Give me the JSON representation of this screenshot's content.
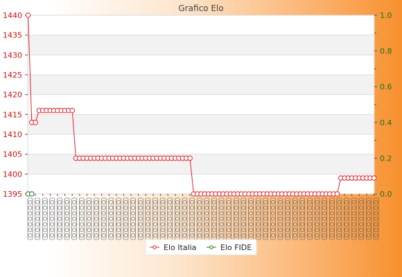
{
  "chart_data": {
    "type": "line",
    "title": "Grafico Elo",
    "y_left": {
      "min": 1395,
      "max": 1440,
      "ticks": [
        1395,
        1400,
        1405,
        1410,
        1415,
        1420,
        1425,
        1430,
        1435,
        1440
      ]
    },
    "y_right": {
      "min": 0,
      "max": 1,
      "ticks": [
        "0.0",
        "0.2",
        "0.4",
        "0.6",
        "0.8",
        "1.0"
      ]
    },
    "grid": true,
    "legend_position": "bottom-center",
    "x_count": 95,
    "series": [
      {
        "name": "Elo Italia",
        "color": "#e0202a",
        "axis": "left",
        "segments": [
          {
            "from": 0,
            "to": 0,
            "value": 1440
          },
          {
            "from": 1,
            "to": 2,
            "value": 1413
          },
          {
            "from": 3,
            "to": 12,
            "value": 1416
          },
          {
            "from": 13,
            "to": 44,
            "value": 1404
          },
          {
            "from": 45,
            "to": 84,
            "value": 1395
          },
          {
            "from": 85,
            "to": 94,
            "value": 1399
          }
        ]
      },
      {
        "name": "Elo FIDE",
        "color": "#1f6e1f",
        "axis": "left",
        "segments": [
          {
            "from": 0,
            "to": 1,
            "value": 1395
          }
        ]
      }
    ]
  }
}
